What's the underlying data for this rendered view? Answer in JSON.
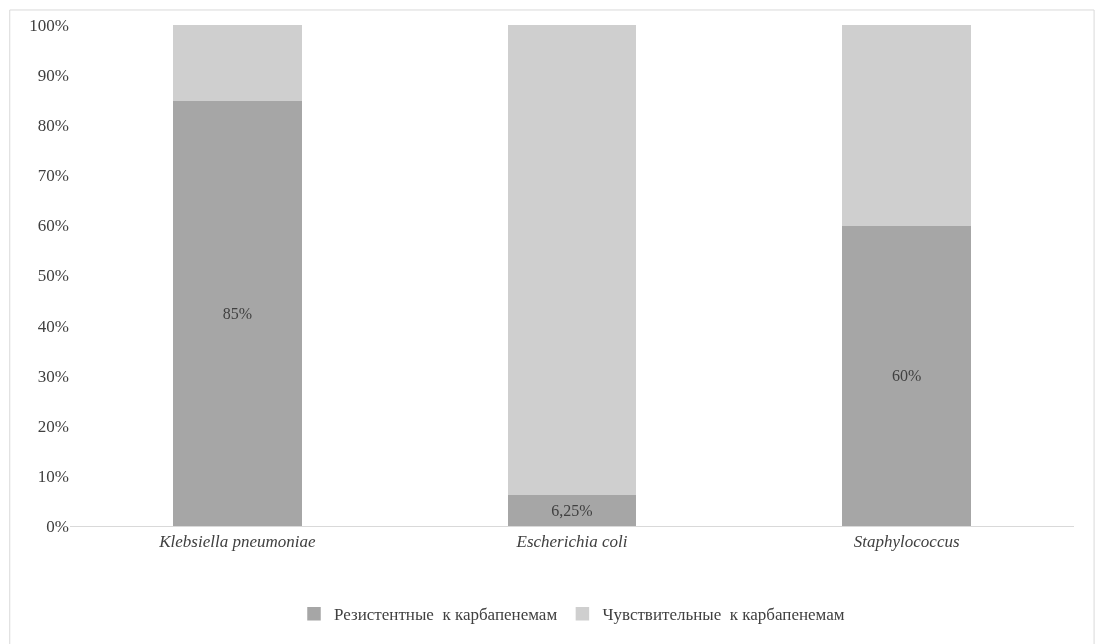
{
  "chart_data": {
    "type": "bar",
    "stacked": true,
    "categories": [
      "Klebsiella pneumoniae",
      "Escherichia coli",
      "Staphylococcus"
    ],
    "series": [
      {
        "name": "Резистентные  к карбапенемам",
        "color": "#a6a6a6",
        "values": [
          85,
          6.25,
          60
        ],
        "value_labels": [
          "85%",
          "6,25%",
          "60%"
        ]
      },
      {
        "name": "Чувствительные  к карбапенемам",
        "color": "#cfcfcf",
        "values": [
          15,
          93.75,
          40
        ]
      }
    ],
    "ylim": [
      0,
      100
    ],
    "yticks": [
      {
        "value": 0,
        "label": "0%"
      },
      {
        "value": 10,
        "label": "10%"
      },
      {
        "value": 20,
        "label": "20%"
      },
      {
        "value": 30,
        "label": "30%"
      },
      {
        "value": 40,
        "label": "40%"
      },
      {
        "value": 50,
        "label": "50%"
      },
      {
        "value": 60,
        "label": "60%"
      },
      {
        "value": 70,
        "label": "70%"
      },
      {
        "value": 80,
        "label": "80%"
      },
      {
        "value": 90,
        "label": "90%"
      },
      {
        "value": 100,
        "label": "100%"
      }
    ],
    "grid": false,
    "legend": "bottom"
  }
}
